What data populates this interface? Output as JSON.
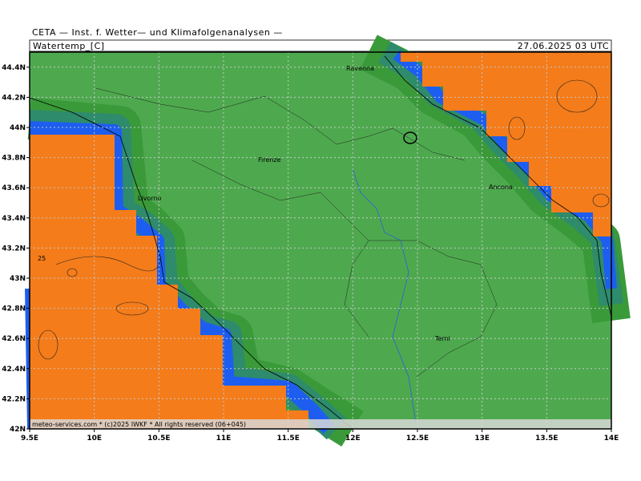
{
  "header": {
    "title": "CETA — Inst. f. Wetter— und Klimafolgenanalysen —",
    "parameter": "Watertemp_[C]",
    "valid_time": "27.06.2025 03 UTC"
  },
  "map": {
    "xlim": [
      9.5,
      14
    ],
    "ylim": [
      42,
      44.5
    ],
    "xticks": [
      {
        "value": 9.5,
        "label": "9.5E"
      },
      {
        "value": 10,
        "label": "10E"
      },
      {
        "value": 10.5,
        "label": "10.5E"
      },
      {
        "value": 11,
        "label": "11E"
      },
      {
        "value": 11.5,
        "label": "11.5E"
      },
      {
        "value": 12,
        "label": "12E"
      },
      {
        "value": 12.5,
        "label": "12.5E"
      },
      {
        "value": 13,
        "label": "13E"
      },
      {
        "value": 13.5,
        "label": "13.5E"
      },
      {
        "value": 14,
        "label": "14E"
      }
    ],
    "yticks": [
      {
        "value": 42,
        "label": "42N"
      },
      {
        "value": 42.2,
        "label": "42.2N"
      },
      {
        "value": 42.4,
        "label": "42.4N"
      },
      {
        "value": 42.6,
        "label": "42.6N"
      },
      {
        "value": 42.8,
        "label": "42.8N"
      },
      {
        "value": 43,
        "label": "43N"
      },
      {
        "value": 43.2,
        "label": "43.2N"
      },
      {
        "value": 43.4,
        "label": "43.4N"
      },
      {
        "value": 43.6,
        "label": "43.6N"
      },
      {
        "value": 43.8,
        "label": "43.8N"
      },
      {
        "value": 44,
        "label": "44N"
      },
      {
        "value": 44.2,
        "label": "44.2N"
      },
      {
        "value": 44.4,
        "label": "44.4N"
      }
    ],
    "cities": [
      "Ravenna",
      "Firenze",
      "Livorno",
      "Ancona",
      "Terni"
    ],
    "contour_label": "25",
    "copyright": "meteo-services.com * (c)2025 IWKF * All rights reserved (06+045)"
  }
}
